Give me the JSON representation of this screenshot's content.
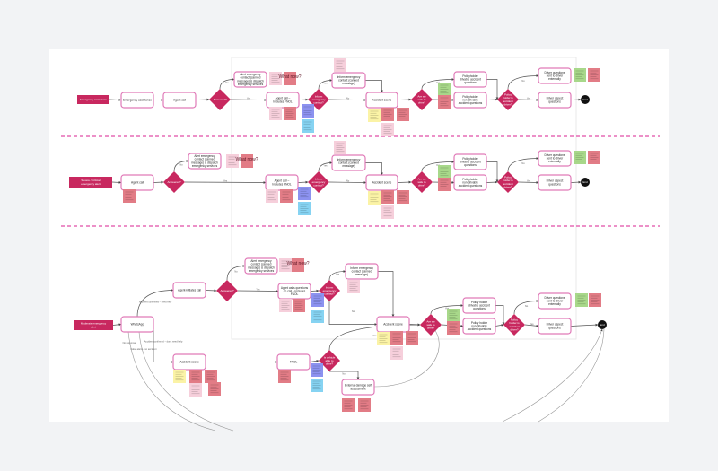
{
  "colors": {
    "accent": "#c8285f",
    "box_border": "#e07ab8",
    "divider": "#e56bb5",
    "end": "#111111"
  },
  "sticky_colors": {
    "lpink": "#f6cfdb",
    "red": "#e27c86",
    "blue": "#8c92f0",
    "cyan": "#86d3f2",
    "yellow": "#fbf3a6",
    "green": "#a8d88a"
  },
  "nodes": {
    "r1start": {
      "label": "Emergency assistance",
      "type": "start"
    },
    "r1ea": {
      "label": "Emergency assistance",
      "type": "box"
    },
    "r1call": {
      "label": "Agent call",
      "type": "box"
    },
    "r1ans": {
      "label": "Answered?",
      "type": "diamond"
    },
    "r1alert": {
      "label": "Alert emergency contact (canned message) & dispatch emergency services",
      "type": "box"
    },
    "r1fnol": {
      "label": "Agent call – Includes FNOL",
      "type": "box"
    },
    "r1inf": {
      "label": "Inform emergency contact?",
      "type": "diamond"
    },
    "r1infbox": {
      "label": "Inform emergency contact (canned message)",
      "type": "box"
    },
    "r1scene": {
      "label": "Accident scene",
      "type": "box"
    },
    "r1safe": {
      "label": "Are we safe to drive?",
      "type": "diamond"
    },
    "r1drv": {
      "label": "Policyholder drivable accident questions",
      "type": "box"
    },
    "r1ndrv": {
      "label": "Policyholder non-drivable accident questions",
      "type": "box"
    },
    "r1pol": {
      "label": "Policy holder is accident driver?",
      "type": "diamond"
    },
    "r1ext": {
      "label": "Driver questions sent to driver externally",
      "type": "box"
    },
    "r1dq": {
      "label": "Driver aspect questions",
      "type": "box"
    },
    "r1end": {
      "label": "End",
      "type": "end"
    },
    "r2start": {
      "label": "Severe / Critical emergency alert",
      "type": "start"
    },
    "r2call": {
      "label": "Agent call",
      "type": "box"
    },
    "r2ans": {
      "label": "Answered?",
      "type": "diamond"
    },
    "r2alert": {
      "label": "Alert emergency contact (canned message) & dispatch emergency services",
      "type": "box"
    },
    "r2fnol": {
      "label": "Agent call – Includes FNOL",
      "type": "box"
    },
    "r2inf": {
      "label": "Inform emergency contact?",
      "type": "diamond"
    },
    "r2infbox": {
      "label": "Inform emergency contact (canned message)",
      "type": "box"
    },
    "r2scene": {
      "label": "Accident scene",
      "type": "box"
    },
    "r2safe": {
      "label": "Are we safe to drive?",
      "type": "diamond"
    },
    "r2drv": {
      "label": "Policyholder drivable accident questions",
      "type": "box"
    },
    "r2ndrv": {
      "label": "Policyholder non-drivable accident questions",
      "type": "box"
    },
    "r2pol": {
      "label": "Policy holder is accident driver?",
      "type": "diamond"
    },
    "r2ext": {
      "label": "Driver questions sent to driver externally",
      "type": "box"
    },
    "r2dq": {
      "label": "Driver aspect questions",
      "type": "box"
    },
    "r2end": {
      "label": "End",
      "type": "end"
    },
    "r3start": {
      "label": "Moderate emergency alert",
      "type": "start"
    },
    "r3wa": {
      "label": "WhatsApp",
      "type": "box"
    },
    "r3call": {
      "label": "Agent-initiates call",
      "type": "box"
    },
    "r3ans": {
      "label": "Answered?",
      "type": "diamond"
    },
    "r3alert": {
      "label": "Alert emergency contact (canned message) & dispatch emergency services",
      "type": "box"
    },
    "r3fnol": {
      "label": "Agent asks questions on call – includes FNOL",
      "type": "box"
    },
    "r3inf": {
      "label": "Inform emergency contact?",
      "type": "diamond"
    },
    "r3infbox": {
      "label": "Inform emergency contact (canned message)",
      "type": "box"
    },
    "r3scene": {
      "label": "Accident scene",
      "type": "box"
    },
    "r3safe": {
      "label": "Are we safe to drive?",
      "type": "diamond"
    },
    "r3drv": {
      "label": "Policy holder drivable accident questions",
      "type": "box"
    },
    "r3ndrv": {
      "label": "Policy holder non-drivable accident questions",
      "type": "box"
    },
    "r3pol": {
      "label": "Policy holder is accident driver?",
      "type": "diamond"
    },
    "r3ext": {
      "label": "Driver questions sent to driver externally",
      "type": "box"
    },
    "r3dq": {
      "label": "Driver aspect questions",
      "type": "box"
    },
    "r3end": {
      "label": "End",
      "type": "end"
    },
    "r3scene2": {
      "label": "Accident scene",
      "type": "box"
    },
    "r3fnol2": {
      "label": "FNOL",
      "type": "box"
    },
    "r3veh": {
      "label": "Is vehicle able to drive?",
      "type": "diamond"
    },
    "r3ext2": {
      "label": "External damage self assessment",
      "type": "box"
    }
  },
  "edges": [
    {
      "from": "r1start",
      "to": "r1ea"
    },
    {
      "from": "r1ea",
      "to": "r1call"
    },
    {
      "from": "r1call",
      "to": "r1ans"
    },
    {
      "from": "r1ans",
      "to": "r1alert",
      "label": "No"
    },
    {
      "from": "r1ans",
      "to": "r1fnol",
      "label": "Yes"
    },
    {
      "from": "r1fnol",
      "to": "r1inf"
    },
    {
      "from": "r1inf",
      "to": "r1infbox",
      "label": "Yes"
    },
    {
      "from": "r1inf",
      "to": "r1scene",
      "label": "No"
    },
    {
      "from": "r1infbox",
      "to": "r1scene"
    },
    {
      "from": "r1scene",
      "to": "r1safe"
    },
    {
      "from": "r1safe",
      "to": "r1drv",
      "label": "Yes"
    },
    {
      "from": "r1safe",
      "to": "r1ndrv",
      "label": "No"
    },
    {
      "from": "r1drv",
      "to": "r1pol"
    },
    {
      "from": "r1ndrv",
      "to": "r1pol"
    },
    {
      "from": "r1pol",
      "to": "r1ext",
      "label": "No"
    },
    {
      "from": "r1pol",
      "to": "r1dq",
      "label": "Yes"
    },
    {
      "from": "r1dq",
      "to": "r1end"
    },
    {
      "from": "r2start",
      "to": "r2call"
    },
    {
      "from": "r2call",
      "to": "r2ans"
    },
    {
      "from": "r2ans",
      "to": "r2alert",
      "label": "No"
    },
    {
      "from": "r2ans",
      "to": "r2fnol",
      "label": "Yes"
    },
    {
      "from": "r2fnol",
      "to": "r2inf"
    },
    {
      "from": "r2inf",
      "to": "r2infbox",
      "label": "Yes"
    },
    {
      "from": "r2inf",
      "to": "r2scene",
      "label": "No"
    },
    {
      "from": "r2infbox",
      "to": "r2scene"
    },
    {
      "from": "r2scene",
      "to": "r2safe"
    },
    {
      "from": "r2safe",
      "to": "r2drv",
      "label": "Yes"
    },
    {
      "from": "r2safe",
      "to": "r2ndrv",
      "label": "No"
    },
    {
      "from": "r2drv",
      "to": "r2pol"
    },
    {
      "from": "r2ndrv",
      "to": "r2pol"
    },
    {
      "from": "r2pol",
      "to": "r2ext",
      "label": "No"
    },
    {
      "from": "r2pol",
      "to": "r2dq",
      "label": "Yes"
    },
    {
      "from": "r2dq",
      "to": "r2end"
    },
    {
      "from": "r3start",
      "to": "r3wa"
    },
    {
      "from": "r3wa",
      "to": "r3call",
      "label": "Accident confirmed – need help"
    },
    {
      "from": "r3wa",
      "to": "r3scene2",
      "label": "Accident confirmed – don't need help"
    },
    {
      "from": "r3call",
      "to": "r3ans"
    },
    {
      "from": "r3ans",
      "to": "r3alert",
      "label": "No"
    },
    {
      "from": "r3ans",
      "to": "r3fnol",
      "label": "Yes"
    },
    {
      "from": "r3fnol",
      "to": "r3inf"
    },
    {
      "from": "r3inf",
      "to": "r3infbox",
      "label": "Yes"
    },
    {
      "from": "r3inf",
      "to": "r3scene",
      "label": "No"
    },
    {
      "from": "r3infbox",
      "to": "r3scene"
    },
    {
      "from": "r3scene",
      "to": "r3safe"
    },
    {
      "from": "r3safe",
      "to": "r3drv",
      "label": "Yes"
    },
    {
      "from": "r3safe",
      "to": "r3ndrv",
      "label": "No"
    },
    {
      "from": "r3drv",
      "to": "r3pol"
    },
    {
      "from": "r3ndrv",
      "to": "r3pol"
    },
    {
      "from": "r3pol",
      "to": "r3ext",
      "label": "No"
    },
    {
      "from": "r3pol",
      "to": "r3dq",
      "label": "Yes"
    },
    {
      "from": "r3dq",
      "to": "r3end"
    },
    {
      "from": "r3scene2",
      "to": "r3fnol2"
    },
    {
      "from": "r3fnol2",
      "to": "r3veh"
    },
    {
      "from": "r3veh",
      "to": "r3safe",
      "label": "Yes"
    },
    {
      "from": "r3veh",
      "to": "r3ext2",
      "label": "No"
    }
  ],
  "curve_labels": {
    "no_response": "No response",
    "false_alarm": "False alarm / no accident"
  },
  "stickies": [
    {
      "id": "s1",
      "color": "lpink"
    },
    {
      "id": "s2",
      "color": "red",
      "text": "What now?"
    },
    {
      "id": "s3",
      "color": "lpink"
    },
    {
      "id": "s4",
      "color": "red"
    },
    {
      "id": "s5",
      "color": "blue"
    },
    {
      "id": "s6",
      "color": "cyan"
    },
    {
      "id": "s7",
      "color": "lpink"
    },
    {
      "id": "s8",
      "color": "yellow"
    },
    {
      "id": "s9",
      "color": "red"
    },
    {
      "id": "s10",
      "color": "red"
    },
    {
      "id": "s11",
      "color": "lpink"
    },
    {
      "id": "s12",
      "color": "green"
    },
    {
      "id": "s13",
      "color": "red"
    },
    {
      "id": "s14",
      "color": "green"
    },
    {
      "id": "s15",
      "color": "red"
    },
    {
      "id": "t1",
      "color": "red"
    },
    {
      "id": "t2",
      "color": "lpink"
    },
    {
      "id": "t3",
      "color": "red",
      "text": "What now?"
    },
    {
      "id": "t4",
      "color": "lpink"
    },
    {
      "id": "t5",
      "color": "red"
    },
    {
      "id": "t6",
      "color": "blue"
    },
    {
      "id": "t7",
      "color": "cyan"
    },
    {
      "id": "t8",
      "color": "lpink"
    },
    {
      "id": "t9",
      "color": "yellow"
    },
    {
      "id": "t10",
      "color": "red"
    },
    {
      "id": "t11",
      "color": "red"
    },
    {
      "id": "t12",
      "color": "lpink"
    },
    {
      "id": "t13",
      "color": "green"
    },
    {
      "id": "t14",
      "color": "red"
    },
    {
      "id": "t15",
      "color": "green"
    },
    {
      "id": "t16",
      "color": "red"
    },
    {
      "id": "u1",
      "color": "lpink"
    },
    {
      "id": "u2",
      "color": "red",
      "text": "What now?"
    },
    {
      "id": "u3",
      "color": "lpink"
    },
    {
      "id": "u4",
      "color": "red"
    },
    {
      "id": "u5",
      "color": "blue"
    },
    {
      "id": "u6",
      "color": "cyan"
    },
    {
      "id": "u7",
      "color": "lpink"
    },
    {
      "id": "u8",
      "color": "yellow"
    },
    {
      "id": "u9",
      "color": "red"
    },
    {
      "id": "u10",
      "color": "red"
    },
    {
      "id": "u11",
      "color": "lpink"
    },
    {
      "id": "u12",
      "color": "green"
    },
    {
      "id": "u13",
      "color": "red"
    },
    {
      "id": "u14",
      "color": "green"
    },
    {
      "id": "u15",
      "color": "red"
    },
    {
      "id": "u16",
      "color": "yellow"
    },
    {
      "id": "u17",
      "color": "red"
    },
    {
      "id": "u18",
      "color": "red"
    },
    {
      "id": "u19",
      "color": "lpink"
    },
    {
      "id": "u20",
      "color": "red"
    },
    {
      "id": "u21",
      "color": "red"
    },
    {
      "id": "u22",
      "color": "blue"
    },
    {
      "id": "u23",
      "color": "cyan"
    },
    {
      "id": "u24",
      "color": "red"
    },
    {
      "id": "u25",
      "color": "red"
    }
  ]
}
